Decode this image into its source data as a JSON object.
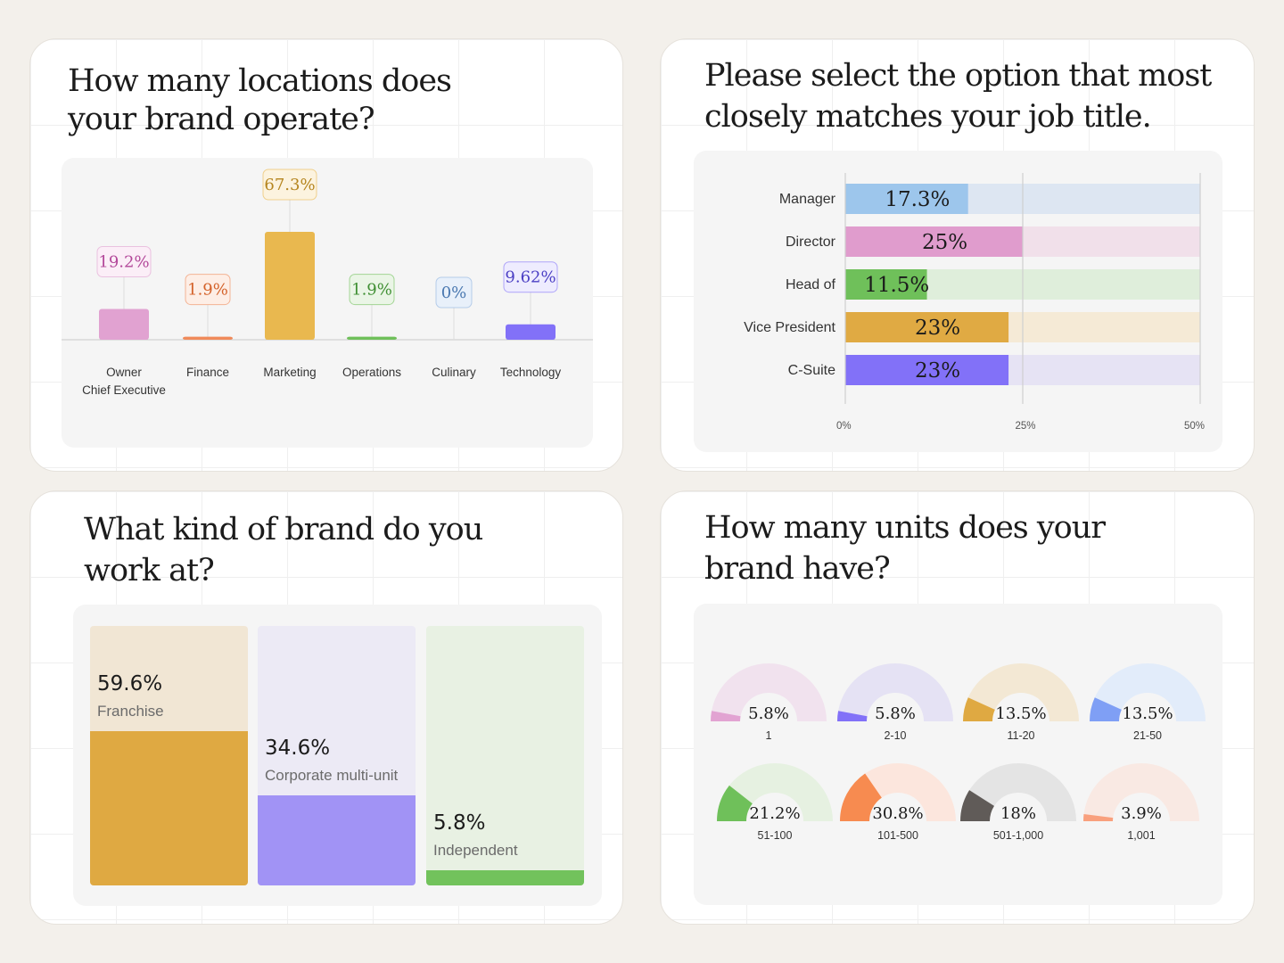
{
  "cards": {
    "locations": {
      "title_line1": "How many locations does",
      "title_line2": "your brand operate?"
    },
    "job": {
      "title_line1": "Please select the option that most",
      "title_line2": "closely matches your job title."
    },
    "brand": {
      "title_line1": "What kind of brand do you",
      "title_line2": "work at?"
    },
    "units": {
      "title_line1": "How many units does your",
      "title_line2": "brand have?"
    }
  },
  "chart_data": [
    {
      "type": "bar",
      "title": "How many locations does your brand operate?",
      "categories": [
        "Owner\nChief Executive",
        "Finance",
        "Marketing",
        "Operations",
        "Culinary",
        "Technology"
      ],
      "values": [
        19.2,
        1.9,
        67.3,
        1.9,
        0,
        9.62
      ],
      "labels": [
        "19.2%",
        "1.9%",
        "67.3%",
        "1.9%",
        "0%",
        "9.62%"
      ],
      "colors": [
        "#e1a2d1",
        "#f08a5a",
        "#e9b84f",
        "#6fc05a",
        "#8fb3e0",
        "#8271f8"
      ],
      "label_text_colors": [
        "#b3489a",
        "#d4622a",
        "#b5851f",
        "#3f8f33",
        "#4a78b0",
        "#4b3fc4"
      ],
      "label_bg_colors": [
        "#fbeef7",
        "#fdeee6",
        "#fcf3df",
        "#eaf5e6",
        "#e8f0fa",
        "#eeecfe"
      ]
    },
    {
      "type": "bar",
      "orientation": "horizontal",
      "title": "Please select the option that most closely matches your job title.",
      "categories": [
        "Manager",
        "Director",
        "Head of",
        "Vice President",
        "C-Suite"
      ],
      "values": [
        17.3,
        25,
        11.5,
        23,
        23
      ],
      "labels": [
        "17.3%",
        "25%",
        "11.5%",
        "23%",
        "23%"
      ],
      "xlim": [
        0,
        50
      ],
      "ticks": [
        "0%",
        "25%",
        "50%"
      ],
      "colors": [
        "#9dc6ec",
        "#e09ccd",
        "#6fc05a",
        "#e0aa43",
        "#8271f8"
      ],
      "track_colors": [
        "#dde6f2",
        "#f1e0ea",
        "#dfeedb",
        "#f5ead6",
        "#e6e3f4"
      ],
      "grid": true
    },
    {
      "type": "bar",
      "title": "What kind of brand do you work at?",
      "categories": [
        "Franchise",
        "Corporate multi-unit",
        "Independent"
      ],
      "values": [
        59.6,
        34.6,
        5.8
      ],
      "labels": [
        "59.6%",
        "34.6%",
        "5.8%"
      ],
      "colors": [
        "#dfa942",
        "#a193f5",
        "#72c25c"
      ],
      "track_colors": [
        "#f1e6d4",
        "#eceaf5",
        "#e8f1e3"
      ]
    },
    {
      "type": "gauge",
      "title": "How many units does your brand have?",
      "categories": [
        "1",
        "2-10",
        "11-20",
        "21-50",
        "51-100",
        "101-500",
        "501-1,000",
        "1,001"
      ],
      "values": [
        5.8,
        5.8,
        13.5,
        13.5,
        21.2,
        30.8,
        18,
        3.9
      ],
      "labels": [
        "5.8%",
        "5.8%",
        "13.5%",
        "13.5%",
        "21.2%",
        "30.8%",
        "18%",
        "3.9%"
      ],
      "colors": [
        "#e2a3d2",
        "#8271f8",
        "#dfa942",
        "#7f9ff5",
        "#6fc05a",
        "#f78b50",
        "#605b58",
        "#f9a07d"
      ],
      "track_colors": [
        "#f1e2ee",
        "#e5e2f4",
        "#f3e8d4",
        "#e2ecfa",
        "#e6f1e1",
        "#fce6dd",
        "#e4e4e4",
        "#f9e9e3"
      ]
    }
  ]
}
